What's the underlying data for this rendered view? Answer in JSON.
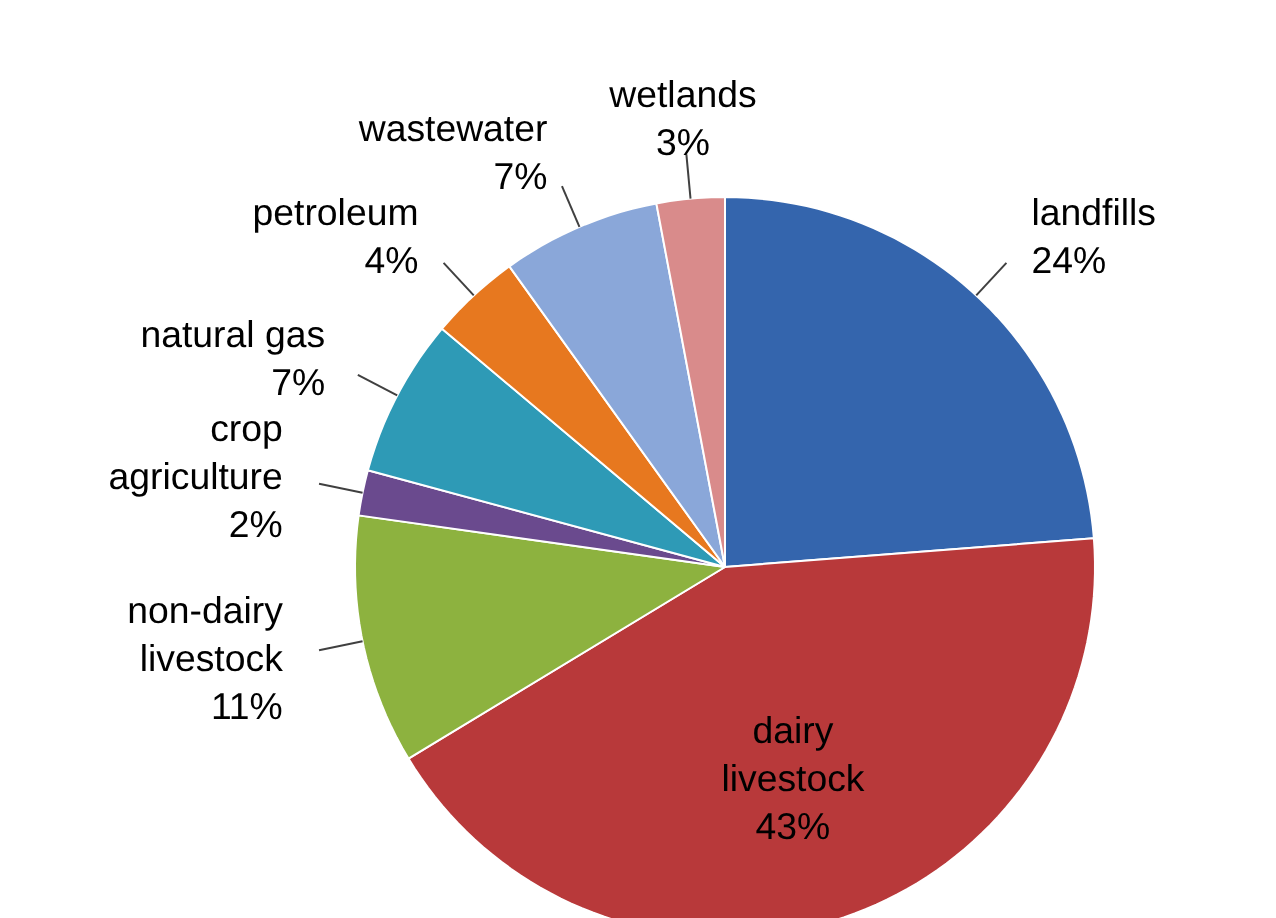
{
  "chart_data": {
    "type": "pie",
    "categories": [
      "landfills",
      "dairy livestock",
      "non-dairy livestock",
      "crop agriculture",
      "natural gas",
      "petroleum",
      "wastewater",
      "wetlands"
    ],
    "values": [
      24,
      43,
      11,
      2,
      7,
      4,
      7,
      3
    ],
    "value_labels": [
      "24%",
      "43%",
      "11%",
      "2%",
      "7%",
      "4%",
      "7%",
      "3%"
    ],
    "colors": [
      "#3465ad",
      "#b8393a",
      "#8db23f",
      "#6a4a8e",
      "#2e9ab6",
      "#e7781f",
      "#8aa7d9",
      "#d98b8b"
    ]
  }
}
